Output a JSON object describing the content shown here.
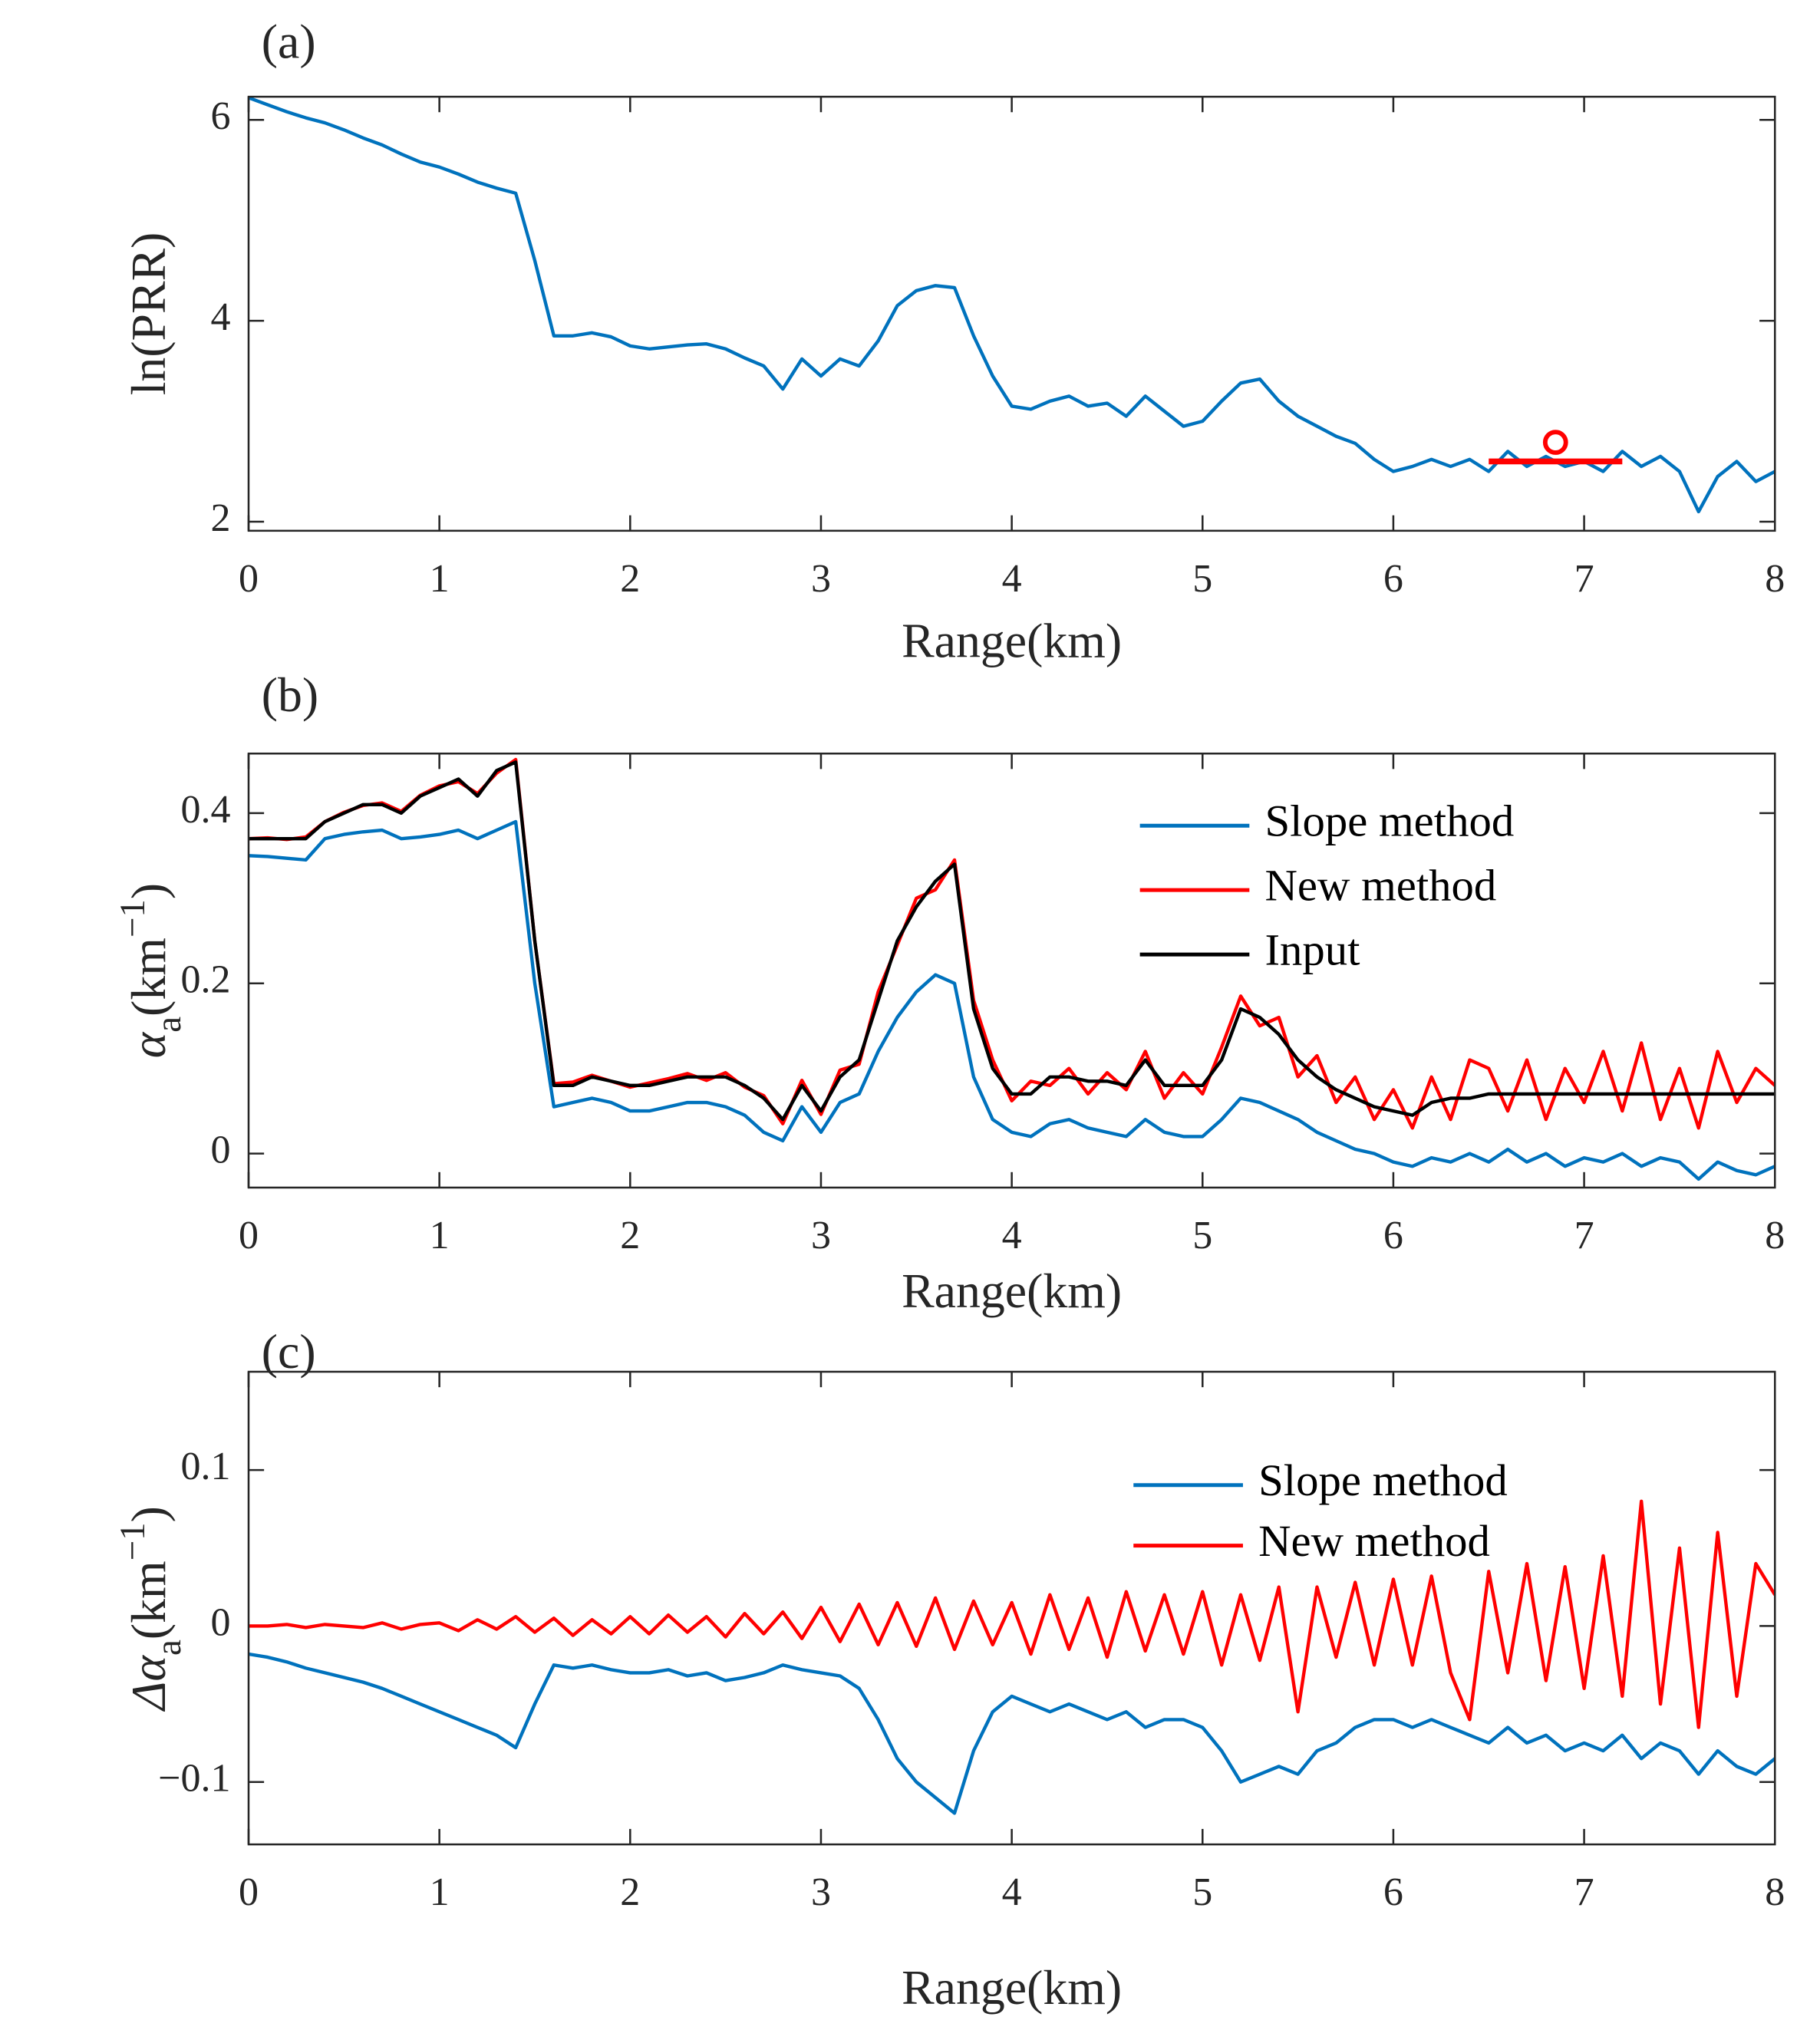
{
  "chart_data": [
    {
      "type": "line",
      "title": "(a)",
      "xlabel": "Range(km)",
      "ylabel": "ln(PRR)",
      "x": [
        0,
        0.1,
        0.2,
        0.3,
        0.4,
        0.5,
        0.6,
        0.7,
        0.8,
        0.9,
        1,
        1.1,
        1.2,
        1.3,
        1.4,
        1.5,
        1.6,
        1.7,
        1.8,
        1.9,
        2,
        2.1,
        2.2,
        2.3,
        2.4,
        2.5,
        2.6,
        2.7,
        2.8,
        2.9,
        3,
        3.1,
        3.2,
        3.3,
        3.4,
        3.5,
        3.6,
        3.7,
        3.8,
        3.9,
        4,
        4.1,
        4.2,
        4.3,
        4.4,
        4.5,
        4.6,
        4.7,
        4.8,
        4.9,
        5,
        5.1,
        5.2,
        5.3,
        5.4,
        5.5,
        5.6,
        5.7,
        5.8,
        5.9,
        6,
        6.1,
        6.2,
        6.3,
        6.4,
        6.5,
        6.6,
        6.7,
        6.8,
        6.9,
        7,
        7.1,
        7.2,
        7.3,
        7.4,
        7.5,
        7.6,
        7.7,
        7.8,
        7.9,
        8
      ],
      "series": [
        {
          "color": "#0072bd",
          "values": [
            6.22,
            6.15,
            6.08,
            6.02,
            5.97,
            5.9,
            5.82,
            5.75,
            5.66,
            5.58,
            5.53,
            5.46,
            5.38,
            5.32,
            5.27,
            4.6,
            3.85,
            3.85,
            3.88,
            3.84,
            3.75,
            3.72,
            3.74,
            3.76,
            3.77,
            3.72,
            3.63,
            3.55,
            3.32,
            3.62,
            3.45,
            3.62,
            3.55,
            3.8,
            4.15,
            4.3,
            4.35,
            4.33,
            3.85,
            3.45,
            3.15,
            3.12,
            3.2,
            3.25,
            3.15,
            3.18,
            3.05,
            3.25,
            3.1,
            2.95,
            3,
            3.2,
            3.38,
            3.42,
            3.2,
            3.05,
            2.95,
            2.85,
            2.78,
            2.62,
            2.5,
            2.55,
            2.62,
            2.55,
            2.62,
            2.5,
            2.7,
            2.55,
            2.65,
            2.55,
            2.6,
            2.5,
            2.7,
            2.55,
            2.65,
            2.5,
            2.1,
            2.45,
            2.6,
            2.4,
            2.5
          ]
        }
      ],
      "fit_line": {
        "color": "#ff0000",
        "x": [
          6.5,
          7.2
        ],
        "values": [
          2.6,
          2.6
        ]
      },
      "marker": {
        "color": "#ff0000",
        "x": 6.85,
        "y": 2.79
      },
      "xlim": [
        0,
        8
      ],
      "xticks": [
        0,
        1,
        2,
        3,
        4,
        5,
        6,
        7,
        8
      ],
      "ylim": [
        1.91,
        6.23
      ],
      "yticks": [
        2,
        4,
        6
      ]
    },
    {
      "type": "line",
      "title": "(b)",
      "xlabel": "Range(km)",
      "ylabel": [
        "α",
        "a",
        "(km",
        "−1",
        ")"
      ],
      "x": [
        0,
        0.1,
        0.2,
        0.3,
        0.4,
        0.5,
        0.6,
        0.7,
        0.8,
        0.9,
        1,
        1.1,
        1.2,
        1.3,
        1.4,
        1.5,
        1.6,
        1.7,
        1.8,
        1.9,
        2,
        2.1,
        2.2,
        2.3,
        2.4,
        2.5,
        2.6,
        2.7,
        2.8,
        2.9,
        3,
        3.1,
        3.2,
        3.3,
        3.4,
        3.5,
        3.6,
        3.7,
        3.8,
        3.9,
        4,
        4.1,
        4.2,
        4.3,
        4.4,
        4.5,
        4.6,
        4.7,
        4.8,
        4.9,
        5,
        5.1,
        5.2,
        5.3,
        5.4,
        5.5,
        5.6,
        5.7,
        5.8,
        5.9,
        6,
        6.1,
        6.2,
        6.3,
        6.4,
        6.5,
        6.6,
        6.7,
        6.8,
        6.9,
        7,
        7.1,
        7.2,
        7.3,
        7.4,
        7.5,
        7.6,
        7.7,
        7.8,
        7.9,
        8
      ],
      "series": [
        {
          "name": "Slope method",
          "color": "#0072bd",
          "values": [
            0.35,
            0.349,
            0.347,
            0.345,
            0.37,
            0.375,
            0.378,
            0.38,
            0.37,
            0.372,
            0.375,
            0.38,
            0.37,
            0.38,
            0.39,
            0.2,
            0.055,
            0.06,
            0.065,
            0.06,
            0.05,
            0.05,
            0.055,
            0.06,
            0.06,
            0.055,
            0.045,
            0.025,
            0.015,
            0.055,
            0.025,
            0.06,
            0.07,
            0.12,
            0.16,
            0.19,
            0.21,
            0.2,
            0.09,
            0.04,
            0.025,
            0.02,
            0.035,
            0.04,
            0.03,
            0.025,
            0.02,
            0.04,
            0.025,
            0.02,
            0.02,
            0.04,
            0.065,
            0.06,
            0.05,
            0.04,
            0.025,
            0.015,
            0.005,
            0,
            -0.01,
            -0.015,
            -0.005,
            -0.01,
            0,
            -0.01,
            0.005,
            -0.01,
            0,
            -0.015,
            -0.005,
            -0.01,
            0,
            -0.015,
            -0.005,
            -0.01,
            -0.03,
            -0.01,
            -0.02,
            -0.025,
            -0.015
          ]
        },
        {
          "name": "New method",
          "color": "#ff0000",
          "values": [
            0.37,
            0.371,
            0.369,
            0.372,
            0.39,
            0.401,
            0.409,
            0.412,
            0.402,
            0.421,
            0.432,
            0.437,
            0.423,
            0.447,
            0.463,
            0.25,
            0.082,
            0.084,
            0.092,
            0.085,
            0.078,
            0.083,
            0.088,
            0.094,
            0.086,
            0.095,
            0.078,
            0.068,
            0.035,
            0.086,
            0.046,
            0.098,
            0.105,
            0.19,
            0.245,
            0.3,
            0.31,
            0.345,
            0.18,
            0.11,
            0.062,
            0.085,
            0.08,
            0.1,
            0.07,
            0.095,
            0.075,
            0.12,
            0.065,
            0.095,
            0.07,
            0.125,
            0.185,
            0.15,
            0.16,
            0.09,
            0.115,
            0.06,
            0.09,
            0.04,
            0.075,
            0.03,
            0.09,
            0.04,
            0.11,
            0.1,
            0.05,
            0.11,
            0.04,
            0.1,
            0.06,
            0.12,
            0.05,
            0.13,
            0.04,
            0.1,
            0.03,
            0.12,
            0.06,
            0.1,
            0.08
          ]
        },
        {
          "name": "Input",
          "color": "#000000",
          "values": [
            0.37,
            0.37,
            0.37,
            0.37,
            0.39,
            0.4,
            0.41,
            0.41,
            0.4,
            0.42,
            0.43,
            0.44,
            0.42,
            0.45,
            0.46,
            0.25,
            0.08,
            0.08,
            0.09,
            0.085,
            0.08,
            0.08,
            0.085,
            0.09,
            0.09,
            0.09,
            0.08,
            0.065,
            0.04,
            0.08,
            0.05,
            0.09,
            0.11,
            0.18,
            0.25,
            0.29,
            0.32,
            0.34,
            0.17,
            0.1,
            0.07,
            0.07,
            0.09,
            0.09,
            0.085,
            0.085,
            0.08,
            0.11,
            0.08,
            0.08,
            0.08,
            0.11,
            0.17,
            0.16,
            0.14,
            0.11,
            0.09,
            0.075,
            0.065,
            0.055,
            0.05,
            0.045,
            0.06,
            0.065,
            0.065,
            0.07,
            0.07,
            0.07,
            0.07,
            0.07,
            0.07,
            0.07,
            0.07,
            0.07,
            0.07,
            0.07,
            0.07,
            0.07,
            0.07,
            0.07,
            0.07
          ]
        }
      ],
      "legend": "northeast",
      "xlim": [
        0,
        8
      ],
      "xticks": [
        0,
        1,
        2,
        3,
        4,
        5,
        6,
        7,
        8
      ],
      "ylim": [
        -0.04,
        0.47
      ],
      "yticks": [
        0,
        0.2,
        0.4
      ]
    },
    {
      "type": "line",
      "title": "(c)",
      "xlabel": "Range(km)",
      "ylabel": [
        "Δα",
        "a",
        "(km",
        "−1",
        ")"
      ],
      "x": [
        0,
        0.1,
        0.2,
        0.3,
        0.4,
        0.5,
        0.6,
        0.7,
        0.8,
        0.9,
        1,
        1.1,
        1.2,
        1.3,
        1.4,
        1.5,
        1.6,
        1.7,
        1.8,
        1.9,
        2,
        2.1,
        2.2,
        2.3,
        2.4,
        2.5,
        2.6,
        2.7,
        2.8,
        2.9,
        3,
        3.1,
        3.2,
        3.3,
        3.4,
        3.5,
        3.6,
        3.7,
        3.8,
        3.9,
        4,
        4.1,
        4.2,
        4.3,
        4.4,
        4.5,
        4.6,
        4.7,
        4.8,
        4.9,
        5,
        5.1,
        5.2,
        5.3,
        5.4,
        5.5,
        5.6,
        5.7,
        5.8,
        5.9,
        6,
        6.1,
        6.2,
        6.3,
        6.4,
        6.5,
        6.6,
        6.7,
        6.8,
        6.9,
        7,
        7.1,
        7.2,
        7.3,
        7.4,
        7.5,
        7.6,
        7.7,
        7.8,
        7.9,
        8
      ],
      "series": [
        {
          "name": "Slope method",
          "color": "#0072bd",
          "values": [
            -0.018,
            -0.02,
            -0.023,
            -0.027,
            -0.03,
            -0.033,
            -0.036,
            -0.04,
            -0.045,
            -0.05,
            -0.055,
            -0.06,
            -0.065,
            -0.07,
            -0.078,
            -0.05,
            -0.025,
            -0.027,
            -0.025,
            -0.028,
            -0.03,
            -0.03,
            -0.028,
            -0.032,
            -0.03,
            -0.035,
            -0.033,
            -0.03,
            -0.025,
            -0.028,
            -0.03,
            -0.032,
            -0.04,
            -0.06,
            -0.085,
            -0.1,
            -0.11,
            -0.12,
            -0.08,
            -0.055,
            -0.045,
            -0.05,
            -0.055,
            -0.05,
            -0.055,
            -0.06,
            -0.055,
            -0.065,
            -0.06,
            -0.06,
            -0.065,
            -0.08,
            -0.1,
            -0.095,
            -0.09,
            -0.095,
            -0.08,
            -0.075,
            -0.065,
            -0.06,
            -0.06,
            -0.065,
            -0.06,
            -0.065,
            -0.07,
            -0.075,
            -0.065,
            -0.075,
            -0.07,
            -0.08,
            -0.075,
            -0.08,
            -0.07,
            -0.085,
            -0.075,
            -0.08,
            -0.095,
            -0.08,
            -0.09,
            -0.095,
            -0.085
          ]
        },
        {
          "name": "New method",
          "color": "#ff0000",
          "values": [
            0,
            0,
            0.001,
            -0.001,
            0.001,
            0,
            -0.001,
            0.002,
            -0.002,
            0.001,
            0.002,
            -0.003,
            0.004,
            -0.002,
            0.006,
            -0.004,
            0.005,
            -0.006,
            0.004,
            -0.005,
            0.006,
            -0.005,
            0.007,
            -0.004,
            0.006,
            -0.007,
            0.008,
            -0.005,
            0.009,
            -0.008,
            0.012,
            -0.01,
            0.014,
            -0.012,
            0.015,
            -0.013,
            0.018,
            -0.015,
            0.016,
            -0.012,
            0.015,
            -0.018,
            0.02,
            -0.015,
            0.018,
            -0.02,
            0.022,
            -0.016,
            0.02,
            -0.018,
            0.022,
            -0.025,
            0.02,
            -0.022,
            0.025,
            -0.055,
            0.025,
            -0.02,
            0.028,
            -0.025,
            0.03,
            -0.025,
            0.032,
            -0.03,
            -0.06,
            0.035,
            -0.03,
            0.04,
            -0.035,
            0.038,
            -0.04,
            0.045,
            -0.045,
            0.08,
            -0.05,
            0.05,
            -0.065,
            0.06,
            -0.045,
            0.04,
            0.02
          ]
        }
      ],
      "legend": "northeast",
      "xlim": [
        0,
        8
      ],
      "xticks": [
        0,
        1,
        2,
        3,
        4,
        5,
        6,
        7,
        8
      ],
      "ylim": [
        -0.14,
        0.163
      ],
      "yticks": [
        {
          "value": -0.1,
          "label": "−0.1"
        },
        0,
        0.1
      ]
    }
  ]
}
